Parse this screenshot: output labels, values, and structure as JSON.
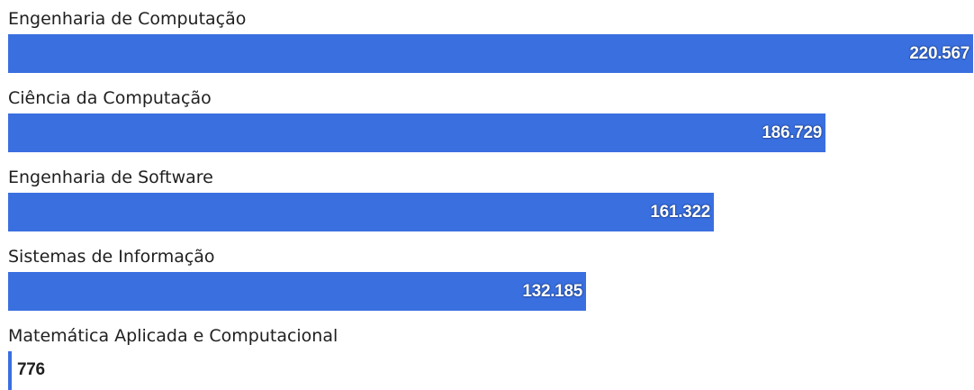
{
  "chart_data": {
    "type": "bar",
    "orientation": "horizontal",
    "categories": [
      "Engenharia de Computação",
      "Ciência da Computação",
      "Engenharia de Software",
      "Sistemas de Informação",
      "Matemática Aplicada e Computacional"
    ],
    "values": [
      220567,
      186729,
      161322,
      132185,
      776
    ],
    "value_labels": [
      "220.567",
      "186.729",
      "161.322",
      "132.185",
      "776"
    ],
    "bar_color": "#3a6fe0",
    "title": "",
    "xlabel": "",
    "ylabel": "",
    "xlim": [
      0,
      220567
    ],
    "grid": false,
    "legend": "none"
  }
}
